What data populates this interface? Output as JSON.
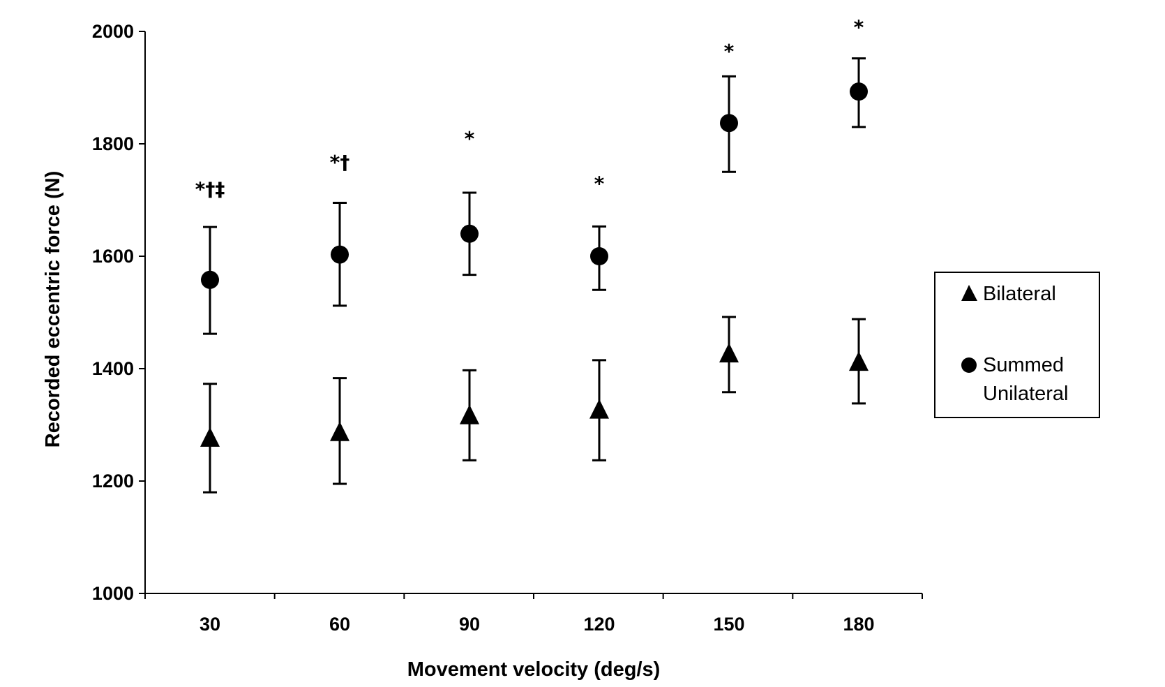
{
  "chart_data": {
    "type": "scatter",
    "title": "",
    "xlabel": "Movement velocity (deg/s)",
    "ylabel": "Recorded eccentric force (N)",
    "categories": [
      "30",
      "60",
      "90",
      "120",
      "150",
      "180"
    ],
    "ylim": [
      1000,
      2000
    ],
    "yticks": [
      1000,
      1200,
      1400,
      1600,
      1800,
      2000
    ],
    "grid": false,
    "legend_position": "right",
    "series": [
      {
        "name": "Bilateral",
        "marker": "triangle",
        "values": [
          1275,
          1285,
          1315,
          1325,
          1425,
          1410
        ],
        "error_low": [
          1180,
          1195,
          1237,
          1237,
          1358,
          1338
        ],
        "error_high": [
          1373,
          1383,
          1397,
          1415,
          1492,
          1488
        ]
      },
      {
        "name": "Summed Unilateral",
        "marker": "circle",
        "values": [
          1558,
          1603,
          1640,
          1600,
          1837,
          1893
        ],
        "error_low": [
          1462,
          1512,
          1567,
          1540,
          1750,
          1830
        ],
        "error_high": [
          1652,
          1695,
          1713,
          1653,
          1920,
          1952
        ]
      }
    ],
    "annotations": [
      {
        "category": "30",
        "text": "*†‡",
        "y": 1720
      },
      {
        "category": "60",
        "text": "*†",
        "y": 1768
      },
      {
        "category": "90",
        "text": "*",
        "y": 1810
      },
      {
        "category": "120",
        "text": "*",
        "y": 1730
      },
      {
        "category": "150",
        "text": "*",
        "y": 1965
      },
      {
        "category": "180",
        "text": "*",
        "y": 2008
      }
    ],
    "legend": {
      "items": [
        {
          "label": "Bilateral",
          "marker": "triangle"
        },
        {
          "label_lines": [
            "Summed",
            "Unilateral"
          ],
          "marker": "circle"
        }
      ]
    }
  }
}
